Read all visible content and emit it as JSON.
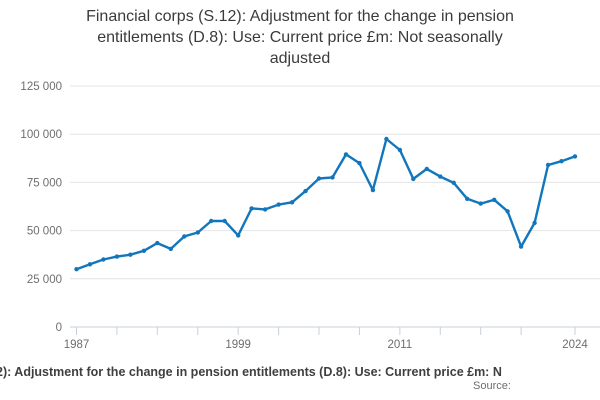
{
  "title": {
    "text": "Financial corps (S.12): Adjustment for the change in pension entitlements (D.8): Use: Current price £m: Not seasonally adjusted",
    "lines": [
      "Financial corps (S.12): Adjustment for the change in pension",
      "entitlements (D.8): Use: Current price £m: Not seasonally",
      "adjusted"
    ]
  },
  "chart_data": {
    "type": "line",
    "title": "Financial corps (S.12): Adjustment for the change in pension entitlements (D.8): Use: Current price £m: Not seasonally adjusted",
    "xlabel": "",
    "ylabel": "",
    "x": [
      1987,
      1988,
      1989,
      1990,
      1991,
      1992,
      1993,
      1994,
      1995,
      1996,
      1997,
      1998,
      1999,
      2000,
      2001,
      2002,
      2003,
      2004,
      2005,
      2006,
      2007,
      2008,
      2009,
      2010,
      2011,
      2012,
      2013,
      2014,
      2015,
      2016,
      2017,
      2018,
      2019,
      2020,
      2021,
      2022,
      2023,
      2024
    ],
    "values": [
      30000,
      32500,
      35000,
      36500,
      37500,
      39500,
      43500,
      40500,
      47000,
      49000,
      55000,
      55000,
      47500,
      61500,
      61000,
      63500,
      64700,
      70500,
      77000,
      77600,
      89500,
      85000,
      71000,
      97500,
      91800,
      76800,
      82000,
      78000,
      74800,
      66500,
      64000,
      66000,
      60000,
      41700,
      54000,
      84000,
      86000,
      88500
    ],
    "ylim": [
      0,
      125000
    ],
    "ytick_interval": 25000,
    "ytick_labels": [
      "0",
      "25 000",
      "50 000",
      "75 000",
      "100 000",
      "125 000"
    ],
    "xticks_labeled": [
      1987,
      1999,
      2011,
      2024
    ],
    "xticks_minor": [
      1987,
      1990,
      1993,
      1996,
      1999,
      2002,
      2005,
      2008,
      2011,
      2014,
      2017,
      2020,
      2024
    ],
    "grid": "horizontal",
    "legend_position": "bottom"
  },
  "footer": {
    "legend_visible_text": "2): Adjustment for the change in pension entitlements (D.8): Use: Current price £m: N",
    "source_text": "Source:"
  },
  "style": {
    "line_color": "#1276bc",
    "grid_color": "#e4e4e4",
    "axis_color": "#c9d0da",
    "label_color": "#6e6e6e",
    "title_color": "#3b3b3b",
    "footer_color": "#3f3f3f",
    "background": "#ffffff"
  }
}
